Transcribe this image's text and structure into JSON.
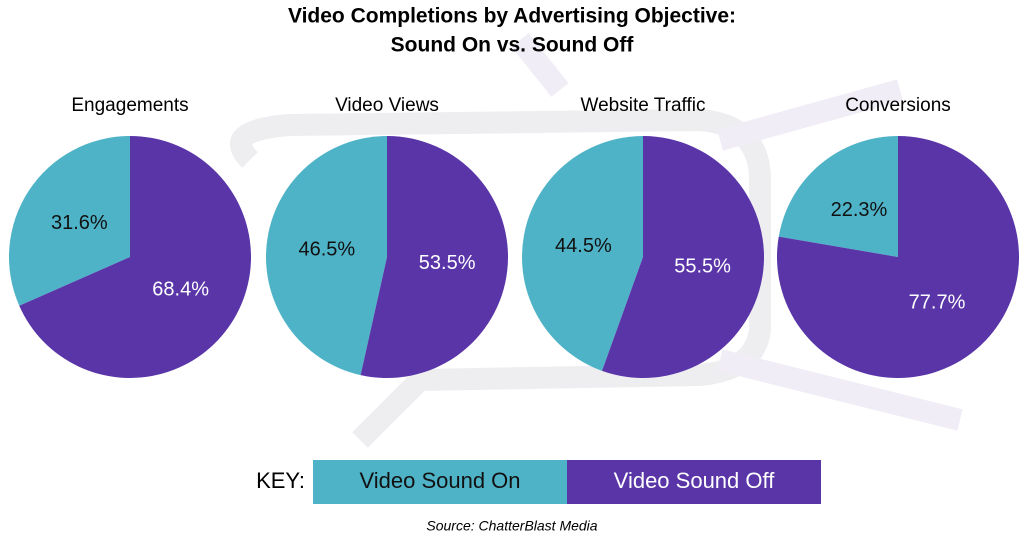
{
  "title": [
    "Video Completions by Advertising Objective:",
    "Sound On vs. Sound Off"
  ],
  "legend": {
    "label": "KEY:",
    "entries": [
      {
        "name": "Video Sound On",
        "color": "#4fb3c8"
      },
      {
        "name": "Video Sound Off",
        "color": "#5935a8"
      }
    ]
  },
  "source": "Source: ChatterBlast Media",
  "chart_data": [
    {
      "type": "pie",
      "title": "Engagements",
      "values": [
        31.6,
        68.4
      ],
      "value_labels": [
        "31.6%",
        "68.4%"
      ]
    },
    {
      "type": "pie",
      "title": "Video Views",
      "values": [
        46.5,
        53.5
      ],
      "value_labels": [
        "46.5%",
        "53.5%"
      ]
    },
    {
      "type": "pie",
      "title": "Website Traffic",
      "values": [
        44.5,
        55.5
      ],
      "value_labels": [
        "44.5%",
        "55.5%"
      ]
    },
    {
      "type": "pie",
      "title": "Conversions",
      "values": [
        22.3,
        77.7
      ],
      "value_labels": [
        "22.3%",
        "77.7%"
      ]
    }
  ]
}
